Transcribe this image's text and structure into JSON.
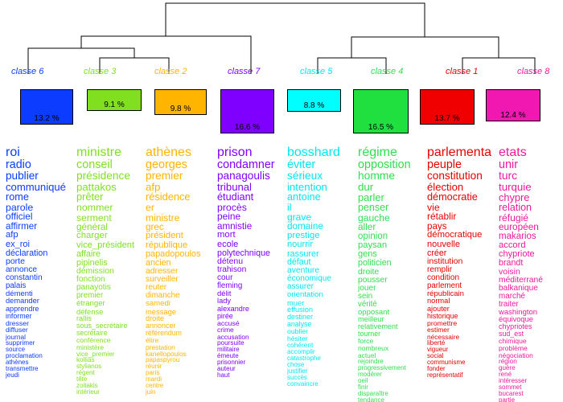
{
  "classes": [
    {
      "label": "classe 6",
      "pct": "13.2 %",
      "color": "#0b3cff",
      "words": [
        "roi",
        "radio",
        "publier",
        "communiqué",
        "rome",
        "parole",
        "officiel",
        "affirmer",
        "afp",
        "ex_roi",
        "déclaration",
        "porte",
        "annonce",
        "constantin",
        "palais",
        "démenti",
        "demander",
        "apprendre",
        "informer",
        "dresser",
        "diffuser",
        "journal",
        "supprimer",
        "source",
        "proclamation",
        "athènes",
        "transmettre",
        "jeudi"
      ]
    },
    {
      "label": "classe 3",
      "pct": "9.1 %",
      "color": "#80e020",
      "words": [
        "ministre",
        "conseil",
        "présidence",
        "pattakos",
        "prêter",
        "nommer",
        "serment",
        "général",
        "charger",
        "vice_président",
        "affaire",
        "pipinelis",
        "démission",
        "fonction",
        "panayotis",
        "premier",
        "étranger",
        "défense",
        "rallis",
        "sous_secrétaire",
        "secrétaire",
        "conférence",
        "ministère",
        "vice_premier",
        "kollias",
        "stylianos",
        "régent",
        "tête",
        "zoitakis",
        "intérieur"
      ]
    },
    {
      "label": "classe 2",
      "pct": "9.8 %",
      "color": "#ffb400",
      "words": [
        "athènes",
        "georges",
        "premier",
        "afp",
        "résidence",
        "er",
        "ministre",
        "grec",
        "président",
        "république",
        "papadopoulos",
        "ancien",
        "adresser",
        "surveiller",
        "reuter",
        "dimanche",
        "samedi",
        "message",
        "droite",
        "annoncer",
        "référendum",
        "élire",
        "prestation",
        "kanellopoulos",
        "papaspyrou",
        "réunir",
        "paris",
        "mardi",
        "centre",
        "juin"
      ]
    },
    {
      "label": "classe 7",
      "pct": "16.6 %",
      "color": "#8000ff",
      "words": [
        "prison",
        "condamner",
        "panagoulis",
        "tribunal",
        "étudiant",
        "procès",
        "peine",
        "amnistie",
        "mort",
        "ecole",
        "polytechnique",
        "détenu",
        "trahison",
        "cour",
        "fleming",
        "délit",
        "lady",
        "alexandre",
        "pirée",
        "accusé",
        "crime",
        "accusation",
        "poursuite",
        "militaire",
        "émeute",
        "prisonnier",
        "auteur",
        "haut"
      ]
    },
    {
      "label": "classe 5",
      "pct": "8.8 %",
      "color": "#00e6f0",
      "words": [
        "bosshard",
        "éviter",
        "sérieux",
        "intention",
        "antoine",
        "il",
        "grave",
        "domaine",
        "prestige",
        "nourrir",
        "rassurer",
        "défaut",
        "aventure",
        "économique",
        "assurer",
        "orientation",
        "muer",
        "effusion",
        "destiner",
        "analyse",
        "oublier",
        "hésiter",
        "cohérent",
        "accomplir",
        "catastrophe",
        "chose",
        "justifier",
        "succès",
        "convaincre"
      ]
    },
    {
      "label": "classe 4",
      "pct": "16.5 %",
      "color": "#30dd50",
      "words": [
        "régime",
        "opposition",
        "homme",
        "dur",
        "parler",
        "penser",
        "gauche",
        "aller",
        "opinion",
        "paysan",
        "gens",
        "politicien",
        "droite",
        "pousser",
        "jouer",
        "sein",
        "vérité",
        "opposant",
        "meilleur",
        "relativement",
        "tourner",
        "force",
        "nombreux",
        "actuel",
        "rejoindre",
        "progressivement",
        "modérer",
        "oeil",
        "finir",
        "disparaître",
        "tendance"
      ]
    },
    {
      "label": "classe 1",
      "pct": "13.7 %",
      "color": "#e60000",
      "words": [
        "parlementa",
        "peuple",
        "constitution",
        "élection",
        "démocratie",
        "vie",
        "rétablir",
        "pays",
        "démocratique",
        "nouvelle",
        "créer",
        "institution",
        "remplir",
        "condition",
        "parlement",
        "républicain",
        "normal",
        "ajouter",
        "historique",
        "promettre",
        "estimer",
        "nécessaire",
        "liberté",
        "vigueur",
        "social",
        "communisme",
        "fonder",
        "représentatif"
      ]
    },
    {
      "label": "classe 8",
      "pct": "12.4 %",
      "color": "#f0189c",
      "words": [
        "etats",
        "unir",
        "turc",
        "turquie",
        "chypre",
        "relation",
        "réfugié",
        "européen",
        "makarios",
        "accord",
        "chypriote",
        "brandt",
        "voisin",
        "méditerrané",
        "balkanique",
        "marché",
        "traiter",
        "washington",
        "équivoque",
        "chypriotes",
        "sud_est",
        "chimique",
        "problème",
        "négociation",
        "région",
        "guère",
        "rené",
        "intéresser",
        "sommet",
        "bucarest",
        "partie"
      ]
    }
  ]
}
